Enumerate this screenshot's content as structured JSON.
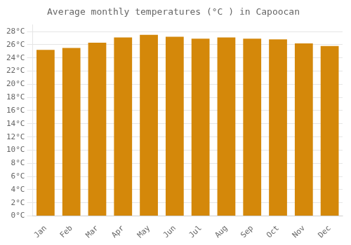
{
  "chart_data": {
    "type": "bar",
    "title": "Average monthly temperatures (°C ) in Capoocan",
    "categories": [
      "Jan",
      "Feb",
      "Mar",
      "Apr",
      "May",
      "Jun",
      "Jul",
      "Aug",
      "Sep",
      "Oct",
      "Nov",
      "Dec"
    ],
    "values": [
      25.2,
      25.5,
      26.3,
      27.1,
      27.5,
      27.2,
      26.9,
      27.1,
      26.9,
      26.8,
      26.2,
      25.8
    ],
    "color": "#D4880A",
    "ylim": [
      0,
      29
    ],
    "yticks": [
      {
        "value": 0,
        "label": "0°C"
      },
      {
        "value": 2,
        "label": "2°C"
      },
      {
        "value": 4,
        "label": "4°C"
      },
      {
        "value": 6,
        "label": "6°C"
      },
      {
        "value": 8,
        "label": "8°C"
      },
      {
        "value": 10,
        "label": "10°C"
      },
      {
        "value": 12,
        "label": "12°C"
      },
      {
        "value": 14,
        "label": "14°C"
      },
      {
        "value": 16,
        "label": "16°C"
      },
      {
        "value": 18,
        "label": "18°C"
      },
      {
        "value": 20,
        "label": "20°C"
      },
      {
        "value": 22,
        "label": "22°C"
      },
      {
        "value": 24,
        "label": "24°C"
      },
      {
        "value": 26,
        "label": "26°C"
      },
      {
        "value": 28,
        "label": "28°C"
      }
    ],
    "grid": true
  }
}
